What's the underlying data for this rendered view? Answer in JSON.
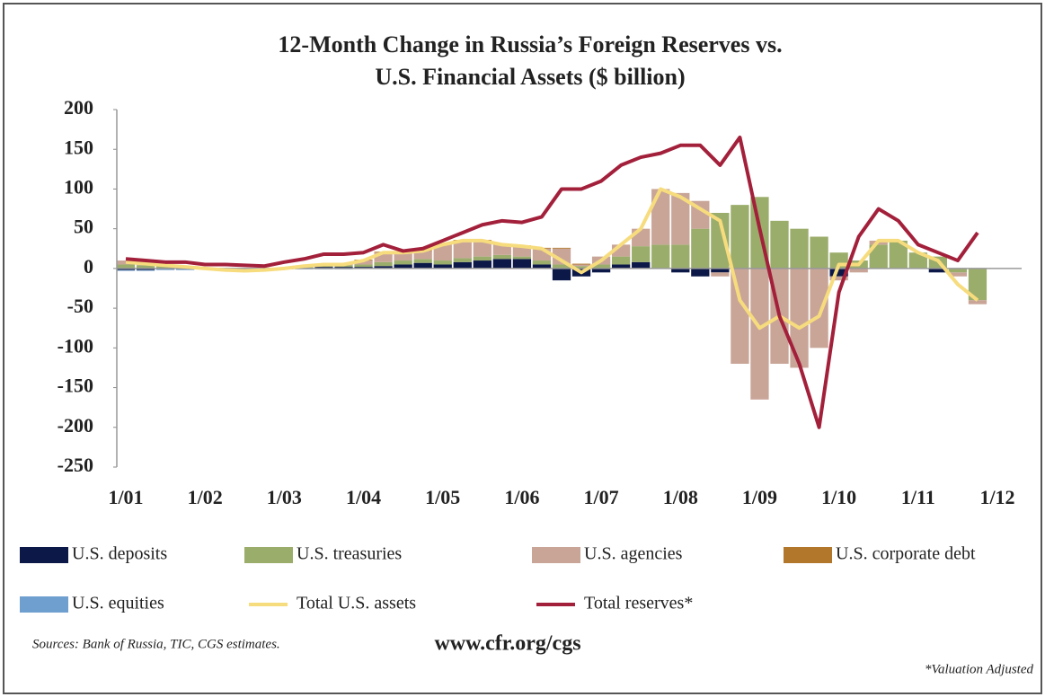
{
  "chart_data": {
    "type": "bar",
    "stacked": true,
    "title": [
      "12-Month Change in Russia’s Foreign Reserves vs.",
      "U.S. Financial Assets ($ billion)"
    ],
    "categories": [
      "1/01",
      null,
      null,
      null,
      "1/02",
      null,
      null,
      null,
      "1/03",
      null,
      null,
      null,
      "1/04",
      null,
      null,
      null,
      "1/05",
      null,
      null,
      null,
      "1/06",
      null,
      null,
      null,
      "1/07",
      null,
      null,
      null,
      "1/08",
      null,
      null,
      null,
      "1/09",
      null,
      null,
      null,
      "1/10",
      null,
      null,
      null,
      "1/11",
      null,
      null,
      null,
      "1/12"
    ],
    "ylim": [
      -250,
      200
    ],
    "yticks": [
      200,
      150,
      100,
      50,
      0,
      -50,
      -100,
      -150,
      -200,
      -250
    ],
    "grid": false,
    "series": [
      {
        "name": "U.S. deposits",
        "color": "#0c1847",
        "values": [
          -2,
          -2,
          -1,
          -1,
          0,
          0,
          0,
          0,
          0,
          0,
          2,
          2,
          2,
          3,
          5,
          7,
          5,
          8,
          10,
          12,
          12,
          5,
          -15,
          -10,
          -5,
          5,
          8,
          0,
          -5,
          -10,
          -5,
          0,
          0,
          0,
          0,
          0,
          -10,
          0,
          0,
          0,
          0,
          -5,
          0,
          0,
          null
        ]
      },
      {
        "name": "U.S. treasuries",
        "color": "#9bad6b",
        "values": [
          5,
          4,
          3,
          2,
          0,
          -1,
          -2,
          -1,
          0,
          2,
          2,
          2,
          3,
          5,
          5,
          5,
          5,
          5,
          5,
          5,
          3,
          5,
          5,
          3,
          5,
          10,
          20,
          30,
          30,
          50,
          70,
          80,
          90,
          60,
          50,
          40,
          20,
          10,
          30,
          35,
          20,
          15,
          -5,
          -40,
          null
        ]
      },
      {
        "name": "U.S. agencies",
        "color": "#c9a598",
        "values": [
          5,
          4,
          2,
          1,
          0,
          -1,
          -1,
          -1,
          0,
          1,
          1,
          1,
          5,
          12,
          10,
          10,
          20,
          22,
          20,
          13,
          13,
          15,
          20,
          2,
          10,
          15,
          22,
          70,
          65,
          35,
          -5,
          -120,
          -165,
          -120,
          -125,
          -100,
          -5,
          -5,
          5,
          0,
          0,
          0,
          -5,
          -5,
          null
        ]
      },
      {
        "name": "U.S. corporate debt",
        "color": "#b3772c",
        "values": [
          0,
          0,
          0,
          0,
          0,
          0,
          0,
          0,
          0,
          0,
          0,
          0,
          1,
          1,
          1,
          1,
          1,
          1,
          1,
          1,
          1,
          1,
          1,
          1,
          0,
          0,
          0,
          0,
          0,
          0,
          0,
          0,
          0,
          0,
          0,
          0,
          0,
          0,
          0,
          0,
          0,
          0,
          0,
          0,
          null
        ]
      },
      {
        "name": "U.S. equities",
        "color": "#6f9fcf",
        "values": [
          -1,
          -1,
          -1,
          -1,
          -1,
          -1,
          -1,
          -1,
          -1,
          -1,
          -1,
          -1,
          0,
          0,
          0,
          0,
          0,
          0,
          0,
          0,
          0,
          0,
          0,
          0,
          0,
          0,
          0,
          0,
          0,
          0,
          0,
          0,
          0,
          0,
          0,
          0,
          0,
          0,
          0,
          0,
          0,
          0,
          0,
          0,
          null
        ]
      },
      {
        "name": "Total U.S. assets",
        "type": "line",
        "color": "#f7dc7e",
        "values": [
          8,
          6,
          4,
          2,
          0,
          -2,
          -3,
          -2,
          0,
          3,
          5,
          5,
          10,
          20,
          20,
          22,
          30,
          35,
          35,
          30,
          28,
          25,
          10,
          -5,
          10,
          30,
          50,
          100,
          90,
          75,
          60,
          -40,
          -75,
          -60,
          -75,
          -60,
          5,
          5,
          35,
          35,
          20,
          10,
          -20,
          -40,
          null
        ]
      },
      {
        "name": "Total reserves*",
        "type": "line",
        "color": "#a3203b",
        "values": [
          12,
          10,
          8,
          8,
          5,
          5,
          4,
          3,
          8,
          12,
          18,
          18,
          20,
          30,
          22,
          25,
          35,
          45,
          55,
          60,
          58,
          65,
          100,
          100,
          110,
          130,
          140,
          145,
          155,
          155,
          130,
          165,
          50,
          -60,
          -120,
          -200,
          -30,
          40,
          75,
          60,
          30,
          20,
          10,
          45,
          null
        ]
      }
    ],
    "sources": "Sources: Bank of Russia, TIC, CGS estimates.",
    "url": "www.cfr.org/cgs",
    "footnote": "*Valuation Adjusted"
  }
}
